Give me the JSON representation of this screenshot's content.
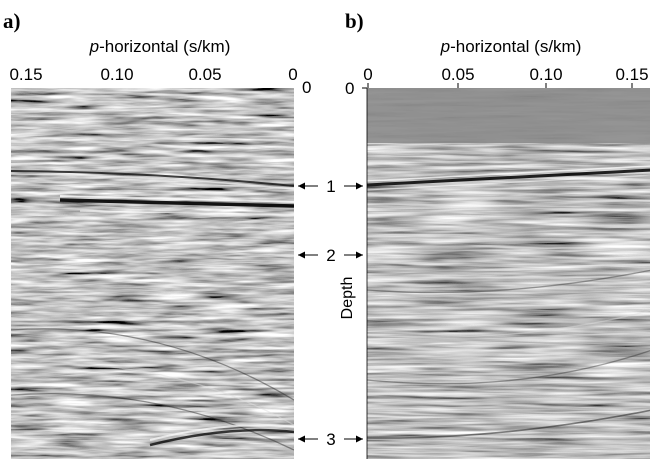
{
  "figure": {
    "panel_a_label": "a)",
    "panel_b_label": "b)",
    "depth_label": "Depth",
    "depth_zero": "0",
    "panel_a": {
      "axis_prefix": "p",
      "axis_title_rest": "-horizontal (s/km)",
      "ticks": [
        "0.15",
        "0.10",
        "0.05",
        "0"
      ]
    },
    "panel_b": {
      "axis_prefix": "p",
      "axis_title_rest": "-horizontal (s/km)",
      "ticks": [
        "0",
        "0.05",
        "0.10",
        "0.15"
      ],
      "zero_label": "0"
    },
    "markers": [
      "1",
      "2",
      "3"
    ],
    "colors": {
      "background": "#ffffff",
      "seismic_mid_gray": "#8c8c8c",
      "ink": "#000000"
    }
  }
}
